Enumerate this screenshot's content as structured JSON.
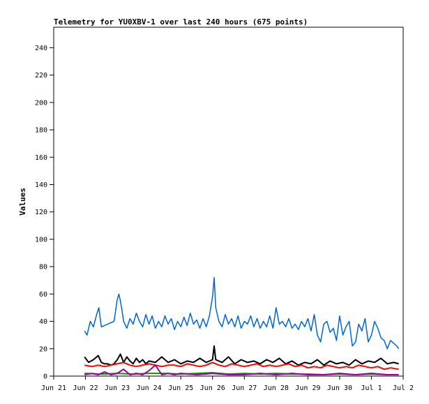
{
  "chart_data": {
    "type": "line",
    "title": "Telemetry for YU0XBV-1 over last 240 hours (675 points)",
    "xlabel": "",
    "ylabel": "Values",
    "ylim": [
      0,
      255
    ],
    "xlim": [
      0,
      11
    ],
    "x_tick_labels": [
      "Jun 21",
      "Jun 22",
      "Jun 23",
      "Jun 24",
      "Jun 25",
      "Jun 26",
      "Jun 27",
      "Jun 28",
      "Jun 29",
      "Jun 30",
      "Jul 1",
      "Jul 2"
    ],
    "y_ticks": [
      0,
      20,
      40,
      60,
      80,
      100,
      120,
      140,
      160,
      180,
      200,
      220,
      240
    ],
    "grid": false,
    "legend": "none",
    "series": [
      {
        "color": "#0066cc",
        "x": [
          0.97,
          1.05,
          1.15,
          1.25,
          1.35,
          1.42,
          1.5,
          1.6,
          1.7,
          1.8,
          1.9,
          2.0,
          2.05,
          2.1,
          2.15,
          2.2,
          2.3,
          2.4,
          2.5,
          2.6,
          2.7,
          2.8,
          2.9,
          3.0,
          3.1,
          3.2,
          3.3,
          3.4,
          3.5,
          3.6,
          3.7,
          3.8,
          3.9,
          4.0,
          4.1,
          4.2,
          4.3,
          4.4,
          4.5,
          4.6,
          4.7,
          4.8,
          4.9,
          5.0,
          5.05,
          5.1,
          5.2,
          5.3,
          5.4,
          5.5,
          5.6,
          5.7,
          5.8,
          5.9,
          6.0,
          6.1,
          6.2,
          6.3,
          6.4,
          6.5,
          6.6,
          6.7,
          6.8,
          6.9,
          7.0,
          7.1,
          7.2,
          7.3,
          7.4,
          7.5,
          7.6,
          7.7,
          7.8,
          7.9,
          8.0,
          8.1,
          8.2,
          8.3,
          8.4,
          8.5,
          8.6,
          8.7,
          8.8,
          8.9,
          9.0,
          9.1,
          9.2,
          9.3,
          9.4,
          9.5,
          9.6,
          9.7,
          9.8,
          9.9,
          10.0,
          10.1,
          10.2,
          10.3,
          10.4,
          10.5,
          10.6,
          10.7,
          10.8,
          10.86
        ],
        "values": [
          33,
          30,
          40,
          36,
          45,
          50,
          36,
          37,
          38,
          39,
          40,
          56,
          60,
          55,
          48,
          40,
          35,
          42,
          38,
          46,
          40,
          36,
          45,
          38,
          44,
          35,
          40,
          36,
          44,
          38,
          42,
          34,
          40,
          36,
          43,
          37,
          46,
          38,
          41,
          35,
          42,
          36,
          44,
          58,
          72,
          50,
          40,
          36,
          45,
          38,
          42,
          36,
          44,
          35,
          40,
          38,
          44,
          36,
          42,
          35,
          40,
          36,
          44,
          35,
          50,
          38,
          40,
          36,
          42,
          35,
          38,
          34,
          40,
          36,
          42,
          33,
          45,
          30,
          25,
          38,
          40,
          32,
          35,
          26,
          44,
          30,
          36,
          40,
          22,
          25,
          38,
          33,
          42,
          25,
          30,
          40,
          35,
          28,
          26,
          20,
          26,
          24,
          22,
          20
        ]
      },
      {
        "color": "#000000",
        "x": [
          0.97,
          1.1,
          1.25,
          1.4,
          1.5,
          1.6,
          1.7,
          1.8,
          1.9,
          2.0,
          2.1,
          2.2,
          2.3,
          2.4,
          2.5,
          2.6,
          2.7,
          2.8,
          2.9,
          3.0,
          3.2,
          3.4,
          3.6,
          3.8,
          4.0,
          4.2,
          4.4,
          4.6,
          4.8,
          5.0,
          5.05,
          5.1,
          5.3,
          5.5,
          5.7,
          5.9,
          6.1,
          6.3,
          6.5,
          6.7,
          6.9,
          7.1,
          7.3,
          7.5,
          7.7,
          7.9,
          8.1,
          8.3,
          8.5,
          8.7,
          8.9,
          9.1,
          9.3,
          9.5,
          9.7,
          9.9,
          10.1,
          10.3,
          10.5,
          10.7,
          10.86
        ],
        "values": [
          14,
          10,
          12,
          15,
          10,
          9,
          9,
          8,
          9,
          12,
          16,
          10,
          14,
          11,
          9,
          13,
          10,
          12,
          9,
          11,
          10,
          14,
          10,
          12,
          9,
          11,
          10,
          13,
          10,
          12,
          22,
          12,
          10,
          14,
          9,
          12,
          10,
          11,
          9,
          12,
          10,
          13,
          9,
          11,
          8,
          10,
          9,
          12,
          8,
          11,
          9,
          10,
          8,
          12,
          9,
          11,
          10,
          13,
          9,
          10,
          9
        ]
      },
      {
        "color": "#ff0000",
        "x": [
          0.97,
          1.2,
          1.4,
          1.6,
          1.8,
          2.0,
          2.2,
          2.4,
          2.6,
          2.8,
          3.0,
          3.2,
          3.4,
          3.6,
          3.8,
          4.0,
          4.2,
          4.4,
          4.6,
          4.8,
          5.0,
          5.2,
          5.4,
          5.6,
          5.8,
          6.0,
          6.2,
          6.4,
          6.6,
          6.8,
          7.0,
          7.2,
          7.4,
          7.6,
          7.8,
          8.0,
          8.2,
          8.4,
          8.6,
          8.8,
          9.0,
          9.2,
          9.4,
          9.6,
          9.8,
          10.0,
          10.2,
          10.4,
          10.6,
          10.86
        ],
        "values": [
          8,
          7,
          8,
          7,
          8,
          9,
          10,
          8,
          7,
          8,
          9,
          8,
          7,
          8,
          8,
          7,
          9,
          8,
          7,
          8,
          10,
          8,
          7,
          9,
          8,
          7,
          8,
          9,
          7,
          8,
          7,
          8,
          9,
          7,
          8,
          6,
          7,
          6,
          8,
          7,
          6,
          7,
          6,
          8,
          7,
          6,
          7,
          5,
          6,
          5
        ]
      },
      {
        "color": "#009900",
        "x": [
          0.97,
          1.5,
          2.0,
          2.5,
          3.0,
          3.5,
          4.0,
          4.5,
          5.0,
          5.5,
          6.0,
          6.5,
          7.0,
          7.5,
          8.0,
          8.5,
          9.0,
          9.5,
          10.0,
          10.5,
          10.86
        ],
        "values": [
          2,
          1.5,
          2,
          1.5,
          2,
          2,
          1.5,
          2,
          2.5,
          1.5,
          2,
          1.5,
          2,
          1.5,
          1.5,
          1,
          1.5,
          1,
          1.5,
          1,
          1
        ]
      },
      {
        "color": "#990099",
        "x": [
          0.97,
          1.2,
          1.4,
          1.6,
          1.8,
          2.0,
          2.2,
          2.4,
          2.6,
          2.8,
          3.0,
          3.2,
          3.4,
          3.6,
          3.8,
          4.0,
          4.5,
          5.0,
          5.5,
          6.0,
          6.5,
          7.0,
          7.5,
          8.0,
          8.5,
          9.0,
          9.5,
          10.0,
          10.5,
          10.86
        ],
        "values": [
          1,
          2,
          1,
          3,
          1,
          2,
          5,
          1,
          2,
          1,
          4,
          8,
          1,
          2,
          1,
          2,
          1,
          2,
          1,
          1,
          2,
          1,
          2,
          1,
          1,
          2,
          1,
          2,
          1,
          1
        ]
      }
    ]
  }
}
